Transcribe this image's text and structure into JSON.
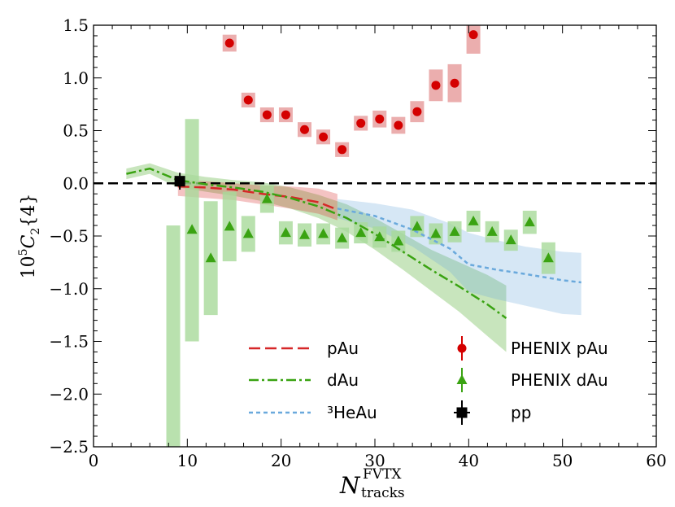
{
  "chart_data": {
    "type": "scatter",
    "xlim": [
      0,
      60
    ],
    "ylim": [
      -2.5,
      1.5
    ],
    "x_ticks": [
      0,
      10,
      20,
      30,
      40,
      50,
      60
    ],
    "y_ticks": [
      -2.5,
      -2.0,
      -1.5,
      -1.0,
      -0.5,
      0.0,
      0.5,
      1.0,
      1.5
    ],
    "x_tick_labels": [
      "0",
      "10",
      "20",
      "30",
      "40",
      "50",
      "60"
    ],
    "y_tick_labels": [
      "−2.5",
      "−2.0",
      "−1.5",
      "−1.0",
      "−0.5",
      "0.0",
      "0.5",
      "1.0",
      "1.5"
    ],
    "xlabel": {
      "base": "N",
      "sup": "FVTX",
      "sub": "tracks"
    },
    "ylabel": {
      "prefix": "10",
      "exp": "5",
      "c": "C",
      "sub": "2",
      "arg": "{4}"
    },
    "reference_line_y": 0,
    "bands": [
      {
        "name": "pAu",
        "color": "#d62728",
        "line_style": "dashed",
        "x": [
          9,
          12,
          15,
          18,
          21,
          24,
          26
        ],
        "y": [
          -0.03,
          -0.04,
          -0.06,
          -0.1,
          -0.13,
          -0.18,
          -0.25
        ],
        "lo": [
          -0.12,
          -0.14,
          -0.16,
          -0.2,
          -0.24,
          -0.29,
          -0.35
        ],
        "hi": [
          0.03,
          0.02,
          0.0,
          -0.02,
          -0.03,
          -0.05,
          -0.1
        ]
      },
      {
        "name": "dAu",
        "color": "#3aa312",
        "line_style": "dashdot",
        "x": [
          3.5,
          6,
          9,
          12,
          15,
          18,
          21,
          24,
          27,
          30,
          33,
          36,
          39,
          42,
          44
        ],
        "y": [
          0.09,
          0.14,
          0.03,
          -0.01,
          -0.04,
          -0.08,
          -0.14,
          -0.22,
          -0.33,
          -0.48,
          -0.65,
          -0.82,
          -0.98,
          -1.15,
          -1.28
        ],
        "lo": [
          0.04,
          0.09,
          -0.04,
          -0.08,
          -0.12,
          -0.17,
          -0.24,
          -0.33,
          -0.46,
          -0.63,
          -0.82,
          -1.02,
          -1.22,
          -1.45,
          -1.6
        ],
        "hi": [
          0.14,
          0.19,
          0.1,
          0.06,
          0.03,
          0.01,
          -0.04,
          -0.11,
          -0.2,
          -0.33,
          -0.48,
          -0.63,
          -0.75,
          -0.87,
          -0.97
        ]
      },
      {
        "name": "³HeAu",
        "color": "#6aa9dc",
        "line_style": "dotted",
        "x": [
          26,
          30,
          34,
          38,
          40,
          43,
          46,
          50,
          52
        ],
        "y": [
          -0.24,
          -0.31,
          -0.44,
          -0.62,
          -0.77,
          -0.82,
          -0.86,
          -0.92,
          -0.94
        ],
        "lo": [
          -0.33,
          -0.43,
          -0.6,
          -0.84,
          -1.03,
          -1.1,
          -1.16,
          -1.24,
          -1.25
        ],
        "hi": [
          -0.15,
          -0.19,
          -0.25,
          -0.38,
          -0.47,
          -0.54,
          -0.6,
          -0.65,
          -0.66
        ]
      }
    ],
    "series": [
      {
        "name": "PHENIX pAu",
        "marker": "circle",
        "color": "#d40000",
        "x": [
          14.5,
          16.5,
          18.5,
          20.5,
          22.5,
          24.5,
          26.5,
          28.5,
          30.5,
          32.5,
          34.5,
          36.5,
          38.5,
          40.5
        ],
        "y": [
          1.33,
          0.79,
          0.65,
          0.65,
          0.51,
          0.44,
          0.32,
          0.57,
          0.61,
          0.55,
          0.68,
          0.93,
          0.95,
          1.41
        ],
        "syst": [
          0.08,
          0.07,
          0.07,
          0.07,
          0.07,
          0.07,
          0.07,
          0.07,
          0.08,
          0.08,
          0.1,
          0.15,
          0.18,
          0.18
        ]
      },
      {
        "name": "PHENIX dAu",
        "marker": "triangle",
        "color": "#3aa312",
        "x": [
          8.5,
          10.5,
          12.5,
          14.5,
          16.5,
          18.5,
          20.5,
          22.5,
          24.5,
          26.5,
          28.5,
          30.5,
          32.5,
          34.5,
          36.5,
          38.5,
          40.5,
          42.5,
          44.5,
          46.5,
          48.5
        ],
        "y": [
          -2.6,
          -0.44,
          -0.71,
          -0.41,
          -0.48,
          -0.15,
          -0.47,
          -0.49,
          -0.48,
          -0.52,
          -0.47,
          -0.51,
          -0.55,
          -0.41,
          -0.48,
          -0.46,
          -0.36,
          -0.46,
          -0.54,
          -0.37,
          -0.71
        ],
        "syst_lo": [
          -3.2,
          -1.5,
          -1.25,
          -0.74,
          -0.65,
          -0.28,
          -0.58,
          -0.6,
          -0.58,
          -0.62,
          -0.57,
          -0.61,
          -0.65,
          -0.51,
          -0.58,
          -0.56,
          -0.46,
          -0.56,
          -0.64,
          -0.48,
          -0.86
        ],
        "syst_hi": [
          -0.4,
          0.61,
          -0.17,
          -0.08,
          -0.31,
          -0.02,
          -0.36,
          -0.38,
          -0.38,
          -0.42,
          -0.37,
          -0.41,
          -0.45,
          -0.31,
          -0.38,
          -0.36,
          -0.26,
          -0.36,
          -0.44,
          -0.26,
          -0.56
        ]
      },
      {
        "name": "pp",
        "marker": "square",
        "color": "#000000",
        "x": [
          9.2
        ],
        "y": [
          0.02
        ],
        "syst": [
          0.02
        ]
      }
    ],
    "legend_placement": "lower-right",
    "grid": false
  }
}
